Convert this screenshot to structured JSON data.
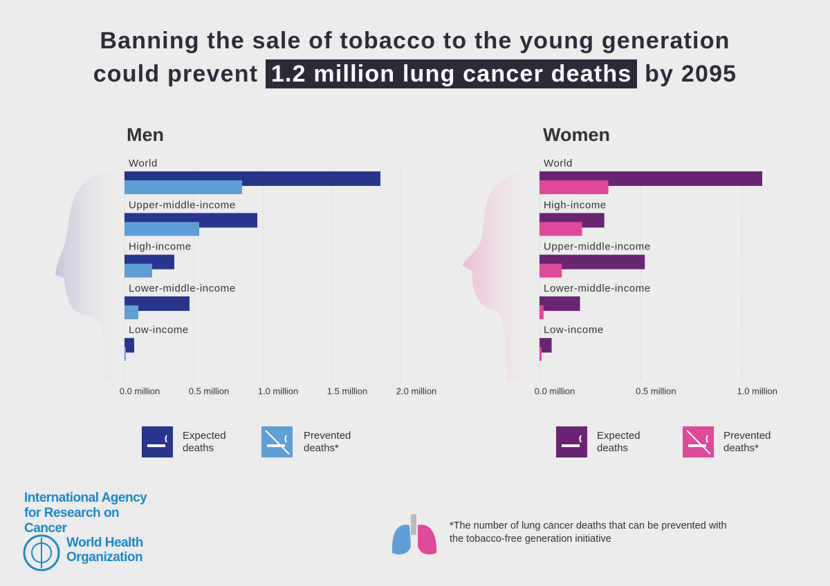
{
  "header": {
    "title_line1": "Banning the sale of tobacco to the young generation",
    "title_before": "could prevent",
    "title_highlight": "1.2 million lung cancer deaths",
    "title_after": "by 2095"
  },
  "chart_data": [
    {
      "type": "bar",
      "orientation": "horizontal",
      "title": "Men",
      "categories": [
        "World",
        "Upper-middle-income",
        "High-income",
        "Lower-middle-income",
        "Low-income"
      ],
      "series": [
        {
          "name": "Expected deaths",
          "color": "#27358f",
          "values": [
            1.85,
            0.96,
            0.36,
            0.47,
            0.07
          ]
        },
        {
          "name": "Prevented deaths*",
          "color": "#5e9fd8",
          "values": [
            0.85,
            0.54,
            0.2,
            0.1,
            0.01
          ]
        }
      ],
      "xlim": [
        0,
        2
      ],
      "xticks": [
        {
          "value": 0,
          "label": "0.0 million"
        },
        {
          "value": 0.5,
          "label": "0.5 million"
        },
        {
          "value": 1,
          "label": "1.0 million"
        },
        {
          "value": 1.5,
          "label": "1.5 million"
        },
        {
          "value": 2,
          "label": "2.0 million"
        }
      ],
      "grid": true
    },
    {
      "type": "bar",
      "orientation": "horizontal",
      "title": "Women",
      "categories": [
        "World",
        "High-income",
        "Upper-middle-income",
        "Lower-middle-income",
        "Low-income"
      ],
      "series": [
        {
          "name": "Expected deaths",
          "color": "#6a2474",
          "values": [
            1.1,
            0.32,
            0.52,
            0.2,
            0.06
          ]
        },
        {
          "name": "Prevented deaths*",
          "color": "#e0489a",
          "values": [
            0.34,
            0.21,
            0.11,
            0.02,
            0.01
          ]
        }
      ],
      "xlim": [
        0,
        1.1
      ],
      "xticks": [
        {
          "value": 0,
          "label": "0.0 million"
        },
        {
          "value": 0.5,
          "label": "0.5 million"
        },
        {
          "value": 1,
          "label": "1.0 million"
        }
      ],
      "grid": true
    }
  ],
  "footnote": "*The number of lung cancer deaths that can be prevented with the tobacco-free generation initiative",
  "logos": {
    "iarc": "International Agency for Research on Cancer",
    "who": "World Health Organization"
  }
}
